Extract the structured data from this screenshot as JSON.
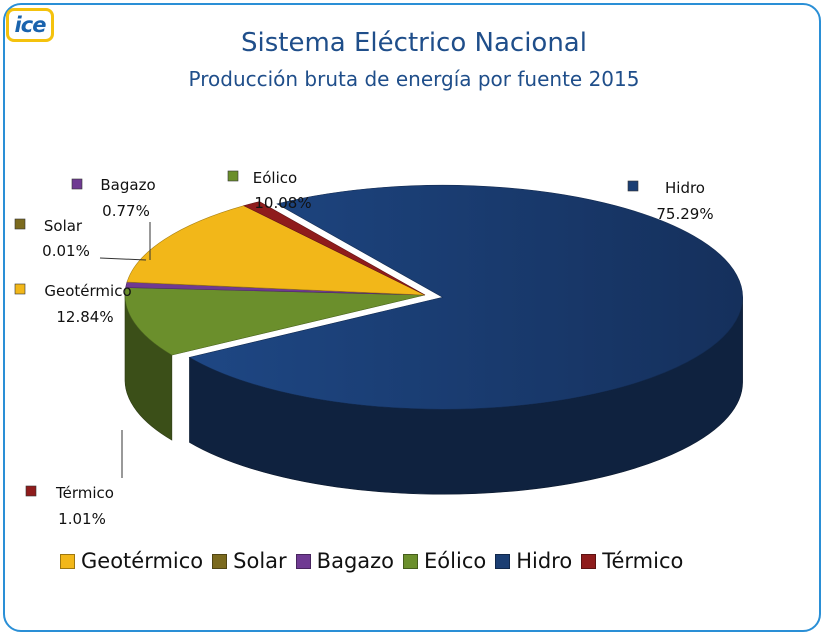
{
  "logo": {
    "text": "ice"
  },
  "chart_data": {
    "type": "pie",
    "title": "Sistema Eléctrico Nacional",
    "subtitle": "Producción bruta de energía por fuente 2015",
    "legend_position": "bottom",
    "slices": [
      {
        "name": "Hidro",
        "value": 75.29,
        "label": "75.29%",
        "color": "#1b3e73"
      },
      {
        "name": "Eólico",
        "value": 10.08,
        "label": "10.08%",
        "color": "#6b8f2c"
      },
      {
        "name": "Bagazo",
        "value": 0.77,
        "label": "0.77%",
        "color": "#6f3a92"
      },
      {
        "name": "Solar",
        "value": 0.01,
        "label": "0.01%",
        "color": "#7b6a1e"
      },
      {
        "name": "Geotérmico",
        "value": 12.84,
        "label": "12.84%",
        "color": "#f2b719"
      },
      {
        "name": "Térmico",
        "value": 1.01,
        "label": "1.01%",
        "color": "#8f1c1c"
      }
    ],
    "legend": [
      "Geotérmico",
      "Solar",
      "Bagazo",
      "Eólico",
      "Hidro",
      "Térmico"
    ]
  }
}
